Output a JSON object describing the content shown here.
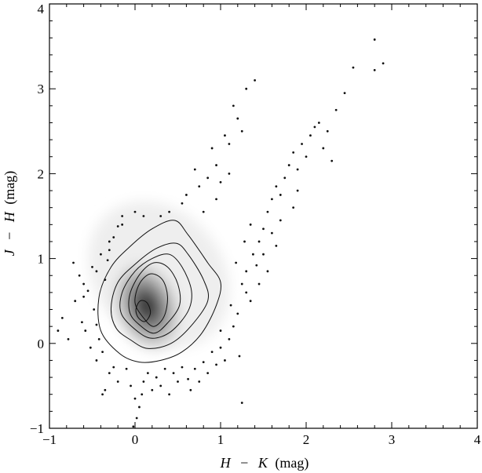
{
  "chart_data": {
    "type": "scatter",
    "subtype": "density-contour",
    "title": "",
    "xlabel": "H − K (mag)",
    "ylabel": "J − H (mag)",
    "xlabel_parts": {
      "var1": "H",
      "sep": "−",
      "var2": "K",
      "unit": "(mag)"
    },
    "ylabel_parts": {
      "var1": "J",
      "sep": "−",
      "var2": "H",
      "unit": "(mag)"
    },
    "xlim": [
      -1,
      4
    ],
    "ylim": [
      -1,
      4
    ],
    "xticks": [
      -1,
      0,
      1,
      2,
      3,
      4
    ],
    "yticks": [
      -1,
      0,
      1,
      2,
      3,
      4
    ],
    "xticklabels": [
      "−1",
      "0",
      "1",
      "2",
      "3",
      "4"
    ],
    "yticklabels": [
      "−1",
      "0",
      "1",
      "2",
      "3",
      "4"
    ],
    "minor_tick_step": 0.2,
    "grid": false,
    "density_peak": [
      0.08,
      0.36
    ],
    "contour_levels": [
      [
        [
          -0.18,
          -0.12
        ],
        [
          0.05,
          -0.22
        ],
        [
          0.3,
          -0.2
        ],
        [
          0.55,
          -0.1
        ],
        [
          0.78,
          0.12
        ],
        [
          0.95,
          0.45
        ],
        [
          1.0,
          0.72
        ],
        [
          0.85,
          0.95
        ],
        [
          0.62,
          1.28
        ],
        [
          0.46,
          1.45
        ],
        [
          0.2,
          1.35
        ],
        [
          -0.05,
          1.15
        ],
        [
          -0.28,
          0.9
        ],
        [
          -0.42,
          0.55
        ],
        [
          -0.4,
          0.15
        ]
      ],
      [
        [
          -0.05,
          0.04
        ],
        [
          0.15,
          -0.06
        ],
        [
          0.42,
          0.0
        ],
        [
          0.65,
          0.2
        ],
        [
          0.85,
          0.5
        ],
        [
          0.8,
          0.75
        ],
        [
          0.62,
          1.05
        ],
        [
          0.48,
          1.18
        ],
        [
          0.25,
          1.12
        ],
        [
          0.02,
          0.95
        ],
        [
          -0.2,
          0.72
        ],
        [
          -0.28,
          0.42
        ],
        [
          -0.22,
          0.18
        ]
      ],
      [
        [
          0.02,
          0.15
        ],
        [
          0.2,
          0.06
        ],
        [
          0.42,
          0.14
        ],
        [
          0.62,
          0.38
        ],
        [
          0.66,
          0.62
        ],
        [
          0.55,
          0.9
        ],
        [
          0.4,
          1.05
        ],
        [
          0.2,
          1.0
        ],
        [
          0.0,
          0.85
        ],
        [
          -0.15,
          0.6
        ],
        [
          -0.16,
          0.35
        ]
      ],
      [
        [
          0.05,
          0.22
        ],
        [
          0.22,
          0.12
        ],
        [
          0.38,
          0.24
        ],
        [
          0.52,
          0.45
        ],
        [
          0.5,
          0.7
        ],
        [
          0.38,
          0.9
        ],
        [
          0.22,
          0.95
        ],
        [
          0.06,
          0.82
        ],
        [
          -0.06,
          0.58
        ],
        [
          -0.06,
          0.36
        ]
      ],
      [
        [
          0.1,
          0.3
        ],
        [
          0.22,
          0.2
        ],
        [
          0.34,
          0.32
        ],
        [
          0.38,
          0.55
        ],
        [
          0.32,
          0.75
        ],
        [
          0.18,
          0.82
        ],
        [
          0.05,
          0.7
        ],
        [
          0.0,
          0.48
        ]
      ],
      [
        [
          0.04,
          0.3
        ],
        [
          0.12,
          0.26
        ],
        [
          0.18,
          0.36
        ],
        [
          0.14,
          0.48
        ],
        [
          0.06,
          0.5
        ],
        [
          0.01,
          0.4
        ]
      ]
    ],
    "scatter_points": [
      [
        -0.72,
        0.95
      ],
      [
        -0.65,
        0.8
      ],
      [
        -0.6,
        0.55
      ],
      [
        -0.85,
        0.3
      ],
      [
        -0.9,
        0.15
      ],
      [
        -0.78,
        0.05
      ],
      [
        -0.55,
        0.62
      ],
      [
        -0.5,
        0.9
      ],
      [
        -0.48,
        0.4
      ],
      [
        -0.45,
        0.22
      ],
      [
        -0.42,
        0.05
      ],
      [
        -0.38,
        -0.1
      ],
      [
        -0.35,
        0.75
      ],
      [
        -0.32,
        0.98
      ],
      [
        -0.3,
        1.1
      ],
      [
        -0.25,
        1.25
      ],
      [
        -0.2,
        1.38
      ],
      [
        -0.15,
        1.4
      ],
      [
        -0.1,
        -0.3
      ],
      [
        -0.2,
        -0.45
      ],
      [
        -0.35,
        -0.55
      ],
      [
        -0.38,
        -0.6
      ],
      [
        -0.05,
        -0.5
      ],
      [
        0.0,
        -0.65
      ],
      [
        0.05,
        -0.75
      ],
      [
        0.02,
        -0.88
      ],
      [
        -0.02,
        -0.98
      ],
      [
        0.08,
        -0.6
      ],
      [
        0.1,
        -0.45
      ],
      [
        0.15,
        -0.35
      ],
      [
        0.25,
        -0.4
      ],
      [
        0.3,
        -0.5
      ],
      [
        0.35,
        -0.3
      ],
      [
        0.45,
        -0.35
      ],
      [
        0.5,
        -0.45
      ],
      [
        0.55,
        -0.28
      ],
      [
        0.62,
        -0.42
      ],
      [
        0.7,
        -0.3
      ],
      [
        0.8,
        -0.22
      ],
      [
        0.9,
        -0.1
      ],
      [
        1.0,
        -0.05
      ],
      [
        1.05,
        -0.2
      ],
      [
        1.1,
        0.05
      ],
      [
        1.15,
        0.2
      ],
      [
        1.22,
        -0.15
      ],
      [
        1.25,
        -0.7
      ],
      [
        1.2,
        0.35
      ],
      [
        1.3,
        0.6
      ],
      [
        1.35,
        0.5
      ],
      [
        1.3,
        0.85
      ],
      [
        1.38,
        1.05
      ],
      [
        1.42,
        0.92
      ],
      [
        1.45,
        1.2
      ],
      [
        1.5,
        1.35
      ],
      [
        1.55,
        1.55
      ],
      [
        1.6,
        1.7
      ],
      [
        1.65,
        1.85
      ],
      [
        1.7,
        1.75
      ],
      [
        1.75,
        1.95
      ],
      [
        1.8,
        2.1
      ],
      [
        1.85,
        2.25
      ],
      [
        1.9,
        2.05
      ],
      [
        1.95,
        2.35
      ],
      [
        2.0,
        2.2
      ],
      [
        2.05,
        2.45
      ],
      [
        2.1,
        2.55
      ],
      [
        2.15,
        2.6
      ],
      [
        2.25,
        2.5
      ],
      [
        2.35,
        2.75
      ],
      [
        2.45,
        2.95
      ],
      [
        2.55,
        3.25
      ],
      [
        2.8,
        3.58
      ],
      [
        2.9,
        3.3
      ],
      [
        2.8,
        3.22
      ],
      [
        1.25,
        2.5
      ],
      [
        1.2,
        2.65
      ],
      [
        1.15,
        2.8
      ],
      [
        1.3,
        3.0
      ],
      [
        1.4,
        3.1
      ],
      [
        1.1,
        2.35
      ],
      [
        0.95,
        2.1
      ],
      [
        0.85,
        1.95
      ],
      [
        0.75,
        1.85
      ],
      [
        0.7,
        2.05
      ],
      [
        0.9,
        2.3
      ],
      [
        1.05,
        2.45
      ],
      [
        0.55,
        1.65
      ],
      [
        0.6,
        1.75
      ],
      [
        0.4,
        1.55
      ],
      [
        0.3,
        1.5
      ],
      [
        1.85,
        1.6
      ],
      [
        1.9,
        1.8
      ],
      [
        2.2,
        2.3
      ],
      [
        2.3,
        2.15
      ],
      [
        1.7,
        1.45
      ],
      [
        1.6,
        1.3
      ],
      [
        1.5,
        1.05
      ],
      [
        1.55,
        0.85
      ],
      [
        1.45,
        0.7
      ],
      [
        1.65,
        1.15
      ],
      [
        -0.6,
        0.7
      ],
      [
        -0.7,
        0.5
      ],
      [
        -0.62,
        0.25
      ],
      [
        -0.58,
        0.15
      ],
      [
        -0.52,
        -0.05
      ],
      [
        -0.45,
        -0.2
      ],
      [
        -0.3,
        -0.35
      ],
      [
        -0.25,
        -0.28
      ],
      [
        0.2,
        -0.55
      ],
      [
        0.4,
        -0.6
      ],
      [
        0.65,
        -0.55
      ],
      [
        0.75,
        -0.45
      ],
      [
        0.85,
        -0.35
      ],
      [
        0.95,
        -0.25
      ],
      [
        1.0,
        0.15
      ],
      [
        1.12,
        0.45
      ],
      [
        1.25,
        0.7
      ],
      [
        1.18,
        0.95
      ],
      [
        1.28,
        1.2
      ],
      [
        1.35,
        1.4
      ],
      [
        -0.3,
        1.2
      ],
      [
        -0.4,
        1.05
      ],
      [
        -0.45,
        0.85
      ],
      [
        -0.15,
        1.5
      ],
      [
        0.0,
        1.55
      ],
      [
        0.1,
        1.5
      ],
      [
        0.8,
        1.55
      ],
      [
        0.95,
        1.7
      ],
      [
        1.0,
        1.9
      ],
      [
        1.1,
        2.0
      ]
    ]
  }
}
